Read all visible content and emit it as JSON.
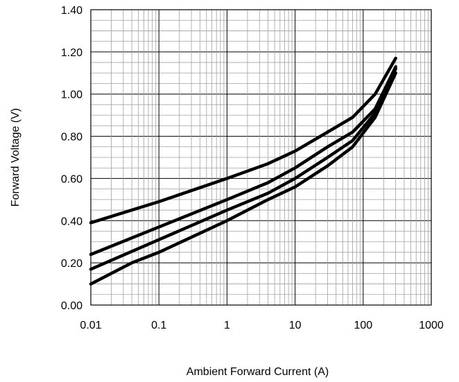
{
  "chart_data": {
    "type": "line",
    "xlabel": "Ambient Forward Current (A)",
    "ylabel": "Forward Voltage (V)",
    "x_scale": "log",
    "xlim": [
      0.01,
      1000
    ],
    "ylim": [
      0.0,
      1.4
    ],
    "x_ticks": [
      "0.01",
      "0.1",
      "1",
      "10",
      "100",
      "1000"
    ],
    "y_ticks": [
      "0.00",
      "0.20",
      "0.40",
      "0.60",
      "0.80",
      "1.00",
      "1.20",
      "1.40"
    ],
    "grid": true,
    "series": [
      {
        "x": [
          0.01,
          0.1,
          1,
          4,
          10,
          30,
          70,
          150,
          300
        ],
        "y": [
          0.39,
          0.49,
          0.6,
          0.67,
          0.73,
          0.82,
          0.89,
          1.0,
          1.17
        ]
      },
      {
        "x": [
          0.01,
          0.1,
          1,
          4,
          10,
          30,
          70,
          150,
          300
        ],
        "y": [
          0.24,
          0.37,
          0.5,
          0.58,
          0.65,
          0.75,
          0.82,
          0.93,
          1.13
        ]
      },
      {
        "x": [
          0.01,
          0.1,
          1,
          4,
          10,
          30,
          70,
          150,
          300
        ],
        "y": [
          0.17,
          0.31,
          0.45,
          0.53,
          0.6,
          0.7,
          0.78,
          0.91,
          1.12
        ]
      },
      {
        "x": [
          0.01,
          0.04,
          0.1,
          1,
          4,
          10,
          30,
          70,
          150,
          300
        ],
        "y": [
          0.1,
          0.2,
          0.25,
          0.4,
          0.5,
          0.56,
          0.66,
          0.75,
          0.89,
          1.1
        ]
      }
    ]
  }
}
